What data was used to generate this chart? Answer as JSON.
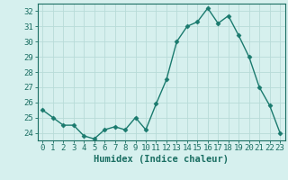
{
  "x": [
    0,
    1,
    2,
    3,
    4,
    5,
    6,
    7,
    8,
    9,
    10,
    11,
    12,
    13,
    14,
    15,
    16,
    17,
    18,
    19,
    20,
    21,
    22,
    23
  ],
  "y": [
    25.5,
    25.0,
    24.5,
    24.5,
    23.8,
    23.6,
    24.2,
    24.4,
    24.2,
    25.0,
    24.2,
    25.9,
    27.5,
    30.0,
    31.0,
    31.3,
    32.2,
    31.2,
    31.7,
    30.4,
    29.0,
    27.0,
    25.8,
    24.0
  ],
  "line_color": "#1a7a6e",
  "marker": "D",
  "marker_size": 2.5,
  "bg_color": "#d6f0ee",
  "grid_color": "#b8dbd8",
  "xlabel": "Humidex (Indice chaleur)",
  "xlim": [
    -0.5,
    23.5
  ],
  "ylim": [
    23.5,
    32.5
  ],
  "yticks": [
    24,
    25,
    26,
    27,
    28,
    29,
    30,
    31,
    32
  ],
  "xticks": [
    0,
    1,
    2,
    3,
    4,
    5,
    6,
    7,
    8,
    9,
    10,
    11,
    12,
    13,
    14,
    15,
    16,
    17,
    18,
    19,
    20,
    21,
    22,
    23
  ],
  "tick_color": "#1a6e62",
  "axis_color": "#1a6e62",
  "tick_fontsize": 6.5,
  "xlabel_fontsize": 7.5
}
